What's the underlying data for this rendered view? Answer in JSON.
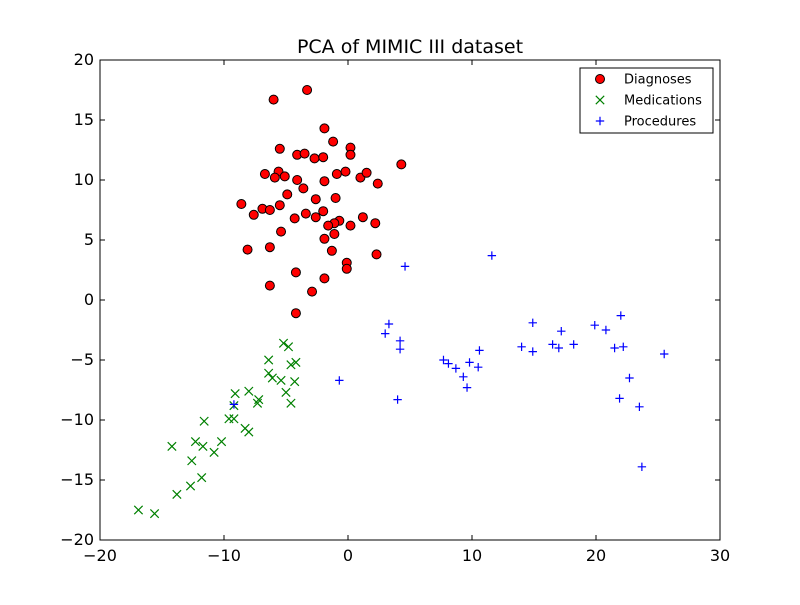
{
  "chart_data": {
    "type": "scatter",
    "title": "PCA of MIMIC III dataset",
    "xlabel": "",
    "ylabel": "",
    "xlim": [
      -20,
      30
    ],
    "ylim": [
      -20,
      20
    ],
    "x_ticks": [
      -20,
      -10,
      0,
      10,
      20,
      30
    ],
    "y_ticks": [
      -20,
      -15,
      -10,
      -5,
      0,
      5,
      10,
      15,
      20
    ],
    "x_tick_labels": [
      "−20",
      "−10",
      "0",
      "10",
      "20",
      "30"
    ],
    "y_tick_labels": [
      "−20",
      "−15",
      "−10",
      "−5",
      "0",
      "5",
      "10",
      "15",
      "20"
    ],
    "grid": false,
    "legend": {
      "position": "top-right"
    },
    "series": [
      {
        "name": "Diagnoses",
        "marker": "circle",
        "color": "#ff0000",
        "edgecolor": "#000000",
        "points": [
          [
            -6.0,
            16.7
          ],
          [
            -3.3,
            17.5
          ],
          [
            -1.9,
            14.3
          ],
          [
            -5.5,
            12.6
          ],
          [
            -4.1,
            12.1
          ],
          [
            -3.5,
            12.2
          ],
          [
            -2.7,
            11.8
          ],
          [
            -2.0,
            11.9
          ],
          [
            -1.2,
            13.2
          ],
          [
            0.2,
            12.7
          ],
          [
            0.2,
            12.1
          ],
          [
            4.3,
            11.3
          ],
          [
            -5.6,
            10.7
          ],
          [
            -6.7,
            10.5
          ],
          [
            -5.9,
            10.2
          ],
          [
            -5.1,
            10.3
          ],
          [
            -4.1,
            10.0
          ],
          [
            -1.9,
            9.9
          ],
          [
            -0.9,
            10.5
          ],
          [
            -0.2,
            10.7
          ],
          [
            1.0,
            10.2
          ],
          [
            1.5,
            10.6
          ],
          [
            2.4,
            9.7
          ],
          [
            -3.6,
            9.3
          ],
          [
            -4.9,
            8.8
          ],
          [
            -2.6,
            8.4
          ],
          [
            -1.0,
            8.5
          ],
          [
            -8.6,
            8.0
          ],
          [
            -5.5,
            7.9
          ],
          [
            -6.9,
            7.6
          ],
          [
            -6.3,
            7.5
          ],
          [
            -7.6,
            7.1
          ],
          [
            -3.4,
            7.2
          ],
          [
            -2.6,
            6.9
          ],
          [
            -2.0,
            7.4
          ],
          [
            -4.3,
            6.8
          ],
          [
            -0.7,
            6.6
          ],
          [
            -1.1,
            6.4
          ],
          [
            -1.6,
            6.2
          ],
          [
            0.2,
            6.2
          ],
          [
            1.2,
            6.9
          ],
          [
            2.2,
            6.4
          ],
          [
            -5.4,
            5.7
          ],
          [
            -1.1,
            5.5
          ],
          [
            -1.9,
            5.1
          ],
          [
            -8.1,
            4.2
          ],
          [
            -6.3,
            4.4
          ],
          [
            -1.3,
            4.1
          ],
          [
            2.3,
            3.8
          ],
          [
            -0.1,
            3.1
          ],
          [
            -0.1,
            2.6
          ],
          [
            -4.2,
            2.3
          ],
          [
            -1.9,
            1.8
          ],
          [
            -6.3,
            1.2
          ],
          [
            -2.9,
            0.7
          ],
          [
            -4.2,
            -1.1
          ]
        ]
      },
      {
        "name": "Medications",
        "marker": "x",
        "color": "#008000",
        "points": [
          [
            -5.2,
            -3.6
          ],
          [
            -4.8,
            -3.9
          ],
          [
            -6.4,
            -5.0
          ],
          [
            -4.2,
            -5.2
          ],
          [
            -4.6,
            -5.4
          ],
          [
            -6.4,
            -6.1
          ],
          [
            -6.1,
            -6.5
          ],
          [
            -5.4,
            -6.7
          ],
          [
            -4.3,
            -6.8
          ],
          [
            -5.0,
            -7.7
          ],
          [
            -8.0,
            -7.6
          ],
          [
            -9.1,
            -7.8
          ],
          [
            -7.2,
            -8.3
          ],
          [
            -7.3,
            -8.6
          ],
          [
            -9.2,
            -8.8
          ],
          [
            -4.6,
            -8.6
          ],
          [
            -9.6,
            -9.9
          ],
          [
            -9.2,
            -9.9
          ],
          [
            -11.6,
            -10.1
          ],
          [
            -8.3,
            -10.7
          ],
          [
            -8.0,
            -11.0
          ],
          [
            -10.2,
            -11.8
          ],
          [
            -12.3,
            -11.8
          ],
          [
            -11.7,
            -12.2
          ],
          [
            -14.2,
            -12.2
          ],
          [
            -10.8,
            -12.7
          ],
          [
            -12.6,
            -13.4
          ],
          [
            -11.8,
            -14.8
          ],
          [
            -12.7,
            -15.5
          ],
          [
            -13.8,
            -16.2
          ],
          [
            -16.9,
            -17.5
          ],
          [
            -15.6,
            -17.8
          ]
        ]
      },
      {
        "name": "Procedures",
        "marker": "plus",
        "color": "#0000ff",
        "points": [
          [
            11.6,
            3.7
          ],
          [
            4.6,
            2.8
          ],
          [
            3.3,
            -2.0
          ],
          [
            3.0,
            -2.8
          ],
          [
            4.2,
            -3.4
          ],
          [
            4.2,
            -4.1
          ],
          [
            7.7,
            -5.0
          ],
          [
            8.1,
            -5.3
          ],
          [
            8.7,
            -5.7
          ],
          [
            9.3,
            -6.4
          ],
          [
            9.6,
            -7.3
          ],
          [
            9.8,
            -5.2
          ],
          [
            10.5,
            -5.6
          ],
          [
            10.6,
            -4.2
          ],
          [
            14.0,
            -3.9
          ],
          [
            14.9,
            -1.9
          ],
          [
            14.9,
            -4.3
          ],
          [
            16.5,
            -3.7
          ],
          [
            17.0,
            -4.0
          ],
          [
            17.2,
            -2.6
          ],
          [
            18.2,
            -3.7
          ],
          [
            19.9,
            -2.1
          ],
          [
            20.8,
            -2.5
          ],
          [
            21.5,
            -4.0
          ],
          [
            21.9,
            -8.2
          ],
          [
            22.0,
            -1.3
          ],
          [
            22.2,
            -3.9
          ],
          [
            22.7,
            -6.5
          ],
          [
            23.5,
            -8.9
          ],
          [
            23.7,
            -13.9
          ],
          [
            25.5,
            -4.5
          ],
          [
            -0.7,
            -6.7
          ],
          [
            4.0,
            -8.3
          ],
          [
            -9.2,
            -8.7
          ]
        ]
      }
    ]
  }
}
